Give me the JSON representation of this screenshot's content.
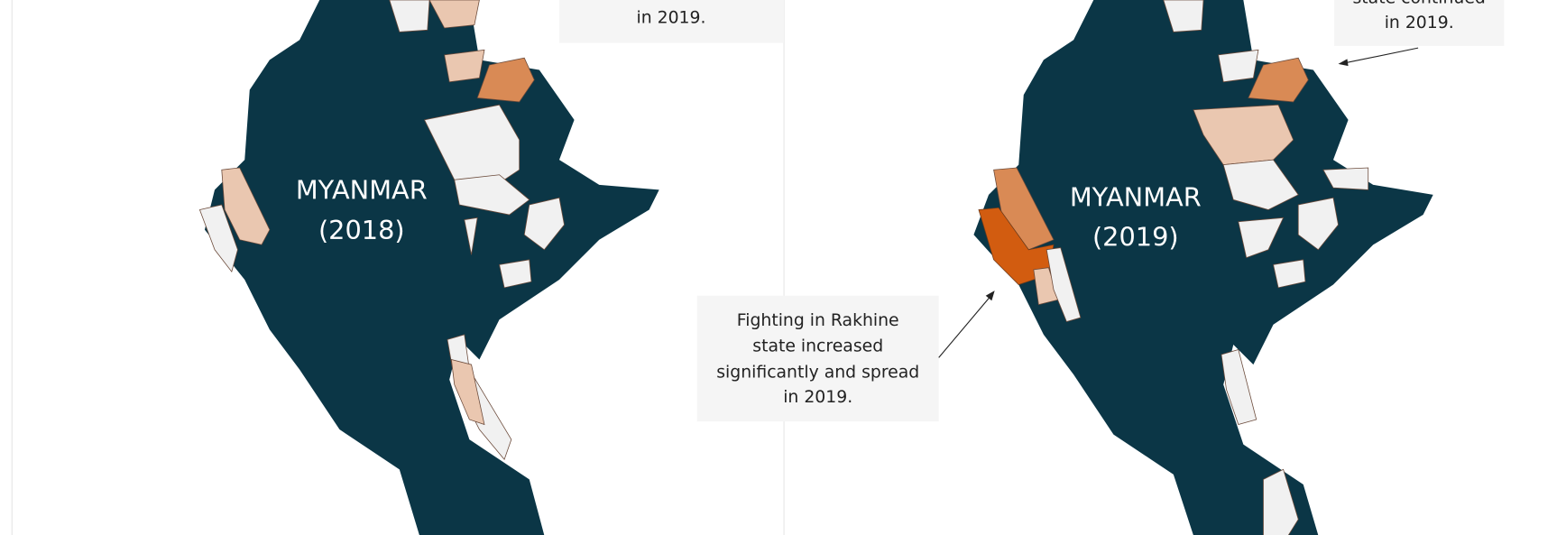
{
  "maps": [
    {
      "label": "MYANMAR",
      "year": "(2018)"
    },
    {
      "label": "MYANMAR",
      "year": "(2019)"
    }
  ],
  "annotations": [
    {
      "lines": [
        "in 2019."
      ]
    },
    {
      "lines": [
        "state continued",
        "in 2019."
      ]
    },
    {
      "lines": [
        "Fighting in Rakhine",
        "state increased",
        "significantly and spread",
        "in 2019."
      ]
    }
  ]
}
